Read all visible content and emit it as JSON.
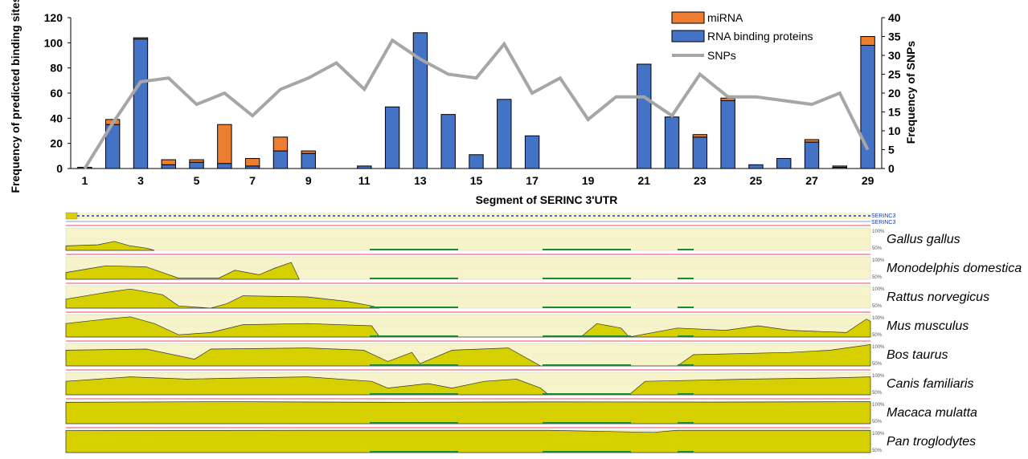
{
  "chart_data": {
    "type": "bar",
    "stacked": true,
    "categories": [
      1,
      2,
      3,
      4,
      5,
      6,
      7,
      8,
      9,
      10,
      11,
      12,
      13,
      14,
      15,
      16,
      17,
      18,
      19,
      20,
      21,
      22,
      23,
      24,
      25,
      26,
      27,
      28,
      29
    ],
    "x_tick_labels": [
      "1",
      "3",
      "5",
      "7",
      "9",
      "11",
      "13",
      "15",
      "17",
      "19",
      "21",
      "23",
      "25",
      "27",
      "29"
    ],
    "series": [
      {
        "name": "RNA binding proteins",
        "type": "bar",
        "axis": "left",
        "color": "#4472c4",
        "values": [
          1,
          35,
          103,
          3,
          5,
          4,
          2,
          14,
          12,
          0,
          2,
          49,
          108,
          43,
          11,
          55,
          26,
          0,
          0,
          0,
          83,
          41,
          25,
          54,
          3,
          8,
          21,
          1,
          98
        ]
      },
      {
        "name": "miRNA",
        "type": "bar",
        "axis": "left",
        "color": "#ed7d31",
        "values": [
          0,
          4,
          1,
          4,
          2,
          31,
          6,
          11,
          2,
          0,
          0,
          0,
          0,
          0,
          0,
          0,
          0,
          0,
          0,
          0,
          0,
          0,
          2,
          2,
          0,
          0,
          2,
          1,
          7
        ]
      },
      {
        "name": "SNPs",
        "type": "line",
        "axis": "right",
        "color": "#a6a6a6",
        "values": [
          0,
          12,
          23,
          24,
          17,
          20,
          14,
          21,
          24,
          28,
          21,
          34,
          29,
          25,
          24,
          33,
          20,
          24,
          13,
          19,
          19,
          14,
          25,
          19,
          19,
          18,
          17,
          20,
          5
        ]
      }
    ],
    "xlabel": "Segment of SERINC 3'UTR",
    "ylabel": "Frequency of predicted binding sites",
    "y2label": "Frequency of SNPs",
    "ylim": [
      0,
      120
    ],
    "y_ticks": [
      0,
      20,
      40,
      60,
      80,
      100,
      120
    ],
    "y2lim": [
      0,
      40
    ],
    "y2_ticks": [
      0,
      5,
      10,
      15,
      20,
      25,
      30,
      35,
      40
    ],
    "legend": "top-right",
    "grid": false
  },
  "alignment": {
    "gene_labels": [
      "SERINC3",
      "SERINC3"
    ],
    "pct_top": "100%",
    "pct_mid": "50%",
    "species": [
      {
        "name": "Gallus gallus",
        "profile": [
          [
            0,
            0.2
          ],
          [
            0.04,
            0.25
          ],
          [
            0.06,
            0.4
          ],
          [
            0.08,
            0.2
          ],
          [
            0.1,
            0.1
          ],
          [
            0.11,
            0
          ]
        ],
        "fill": "#f7f4cc"
      },
      {
        "name": "Monodelphis domestica",
        "profile": [
          [
            0,
            0.3
          ],
          [
            0.05,
            0.6
          ],
          [
            0.1,
            0.55
          ],
          [
            0.12,
            0.3
          ],
          [
            0.14,
            0.05
          ],
          [
            0.19,
            0.05
          ],
          [
            0.21,
            0.4
          ],
          [
            0.24,
            0.2
          ],
          [
            0.26,
            0.5
          ],
          [
            0.28,
            0.75
          ],
          [
            0.29,
            0
          ]
        ],
        "fill": "#f7f4cc"
      },
      {
        "name": "Rattus norvegicus",
        "profile": [
          [
            0,
            0.4
          ],
          [
            0.05,
            0.7
          ],
          [
            0.08,
            0.85
          ],
          [
            0.12,
            0.6
          ],
          [
            0.14,
            0.1
          ],
          [
            0.18,
            0
          ],
          [
            0.2,
            0.2
          ],
          [
            0.22,
            0.55
          ],
          [
            0.3,
            0.5
          ],
          [
            0.35,
            0.3
          ],
          [
            0.38,
            0.1
          ],
          [
            0.39,
            0
          ]
        ],
        "fill": "#f7f4cc"
      },
      {
        "name": "Mus musculus",
        "profile": [
          [
            0,
            0.6
          ],
          [
            0.05,
            0.8
          ],
          [
            0.08,
            0.9
          ],
          [
            0.11,
            0.6
          ],
          [
            0.14,
            0.1
          ],
          [
            0.18,
            0.2
          ],
          [
            0.22,
            0.55
          ],
          [
            0.3,
            0.6
          ],
          [
            0.38,
            0.5
          ],
          [
            0.39,
            0
          ],
          [
            0.64,
            0
          ],
          [
            0.66,
            0.6
          ],
          [
            0.69,
            0.4
          ],
          [
            0.7,
            0
          ],
          [
            0.76,
            0.4
          ],
          [
            0.82,
            0.3
          ],
          [
            0.86,
            0.5
          ],
          [
            0.9,
            0.3
          ],
          [
            0.97,
            0.2
          ],
          [
            0.995,
            0.8
          ],
          [
            1,
            0.7
          ]
        ],
        "fill": "#f7f4cc"
      },
      {
        "name": "Bos taurus",
        "profile": [
          [
            0,
            0.7
          ],
          [
            0.1,
            0.75
          ],
          [
            0.16,
            0.3
          ],
          [
            0.18,
            0.75
          ],
          [
            0.3,
            0.8
          ],
          [
            0.37,
            0.7
          ],
          [
            0.4,
            0.2
          ],
          [
            0.43,
            0.6
          ],
          [
            0.44,
            0.1
          ],
          [
            0.48,
            0.7
          ],
          [
            0.55,
            0.8
          ],
          [
            0.58,
            0.2
          ],
          [
            0.59,
            0
          ],
          [
            0.76,
            0
          ],
          [
            0.78,
            0.5
          ],
          [
            0.9,
            0.6
          ],
          [
            0.95,
            0.7
          ],
          [
            1,
            0.95
          ]
        ],
        "fill": "#f7f4cc"
      },
      {
        "name": "Canis familiaris",
        "profile": [
          [
            0,
            0.6
          ],
          [
            0.08,
            0.8
          ],
          [
            0.15,
            0.7
          ],
          [
            0.22,
            0.75
          ],
          [
            0.3,
            0.8
          ],
          [
            0.38,
            0.6
          ],
          [
            0.4,
            0.3
          ],
          [
            0.45,
            0.5
          ],
          [
            0.48,
            0.3
          ],
          [
            0.52,
            0.6
          ],
          [
            0.56,
            0.7
          ],
          [
            0.59,
            0.3
          ],
          [
            0.6,
            0
          ],
          [
            0.7,
            0
          ],
          [
            0.72,
            0.6
          ],
          [
            0.85,
            0.7
          ],
          [
            0.95,
            0.75
          ],
          [
            1,
            0.8
          ]
        ],
        "fill": "#f7f4cc"
      },
      {
        "name": "Macaca mulatta",
        "profile": [
          [
            0,
            0.95
          ],
          [
            0.2,
            0.98
          ],
          [
            0.4,
            0.95
          ],
          [
            0.6,
            0.97
          ],
          [
            0.8,
            0.96
          ],
          [
            1,
            0.98
          ]
        ],
        "fill": "#f7f4cc"
      },
      {
        "name": "Pan troglodytes",
        "profile": [
          [
            0,
            0.98
          ],
          [
            0.3,
            0.99
          ],
          [
            0.6,
            0.99
          ],
          [
            0.73,
            0.9
          ],
          [
            0.76,
            0.99
          ],
          [
            1,
            0.99
          ]
        ],
        "fill": "#f7f4cc"
      }
    ]
  }
}
